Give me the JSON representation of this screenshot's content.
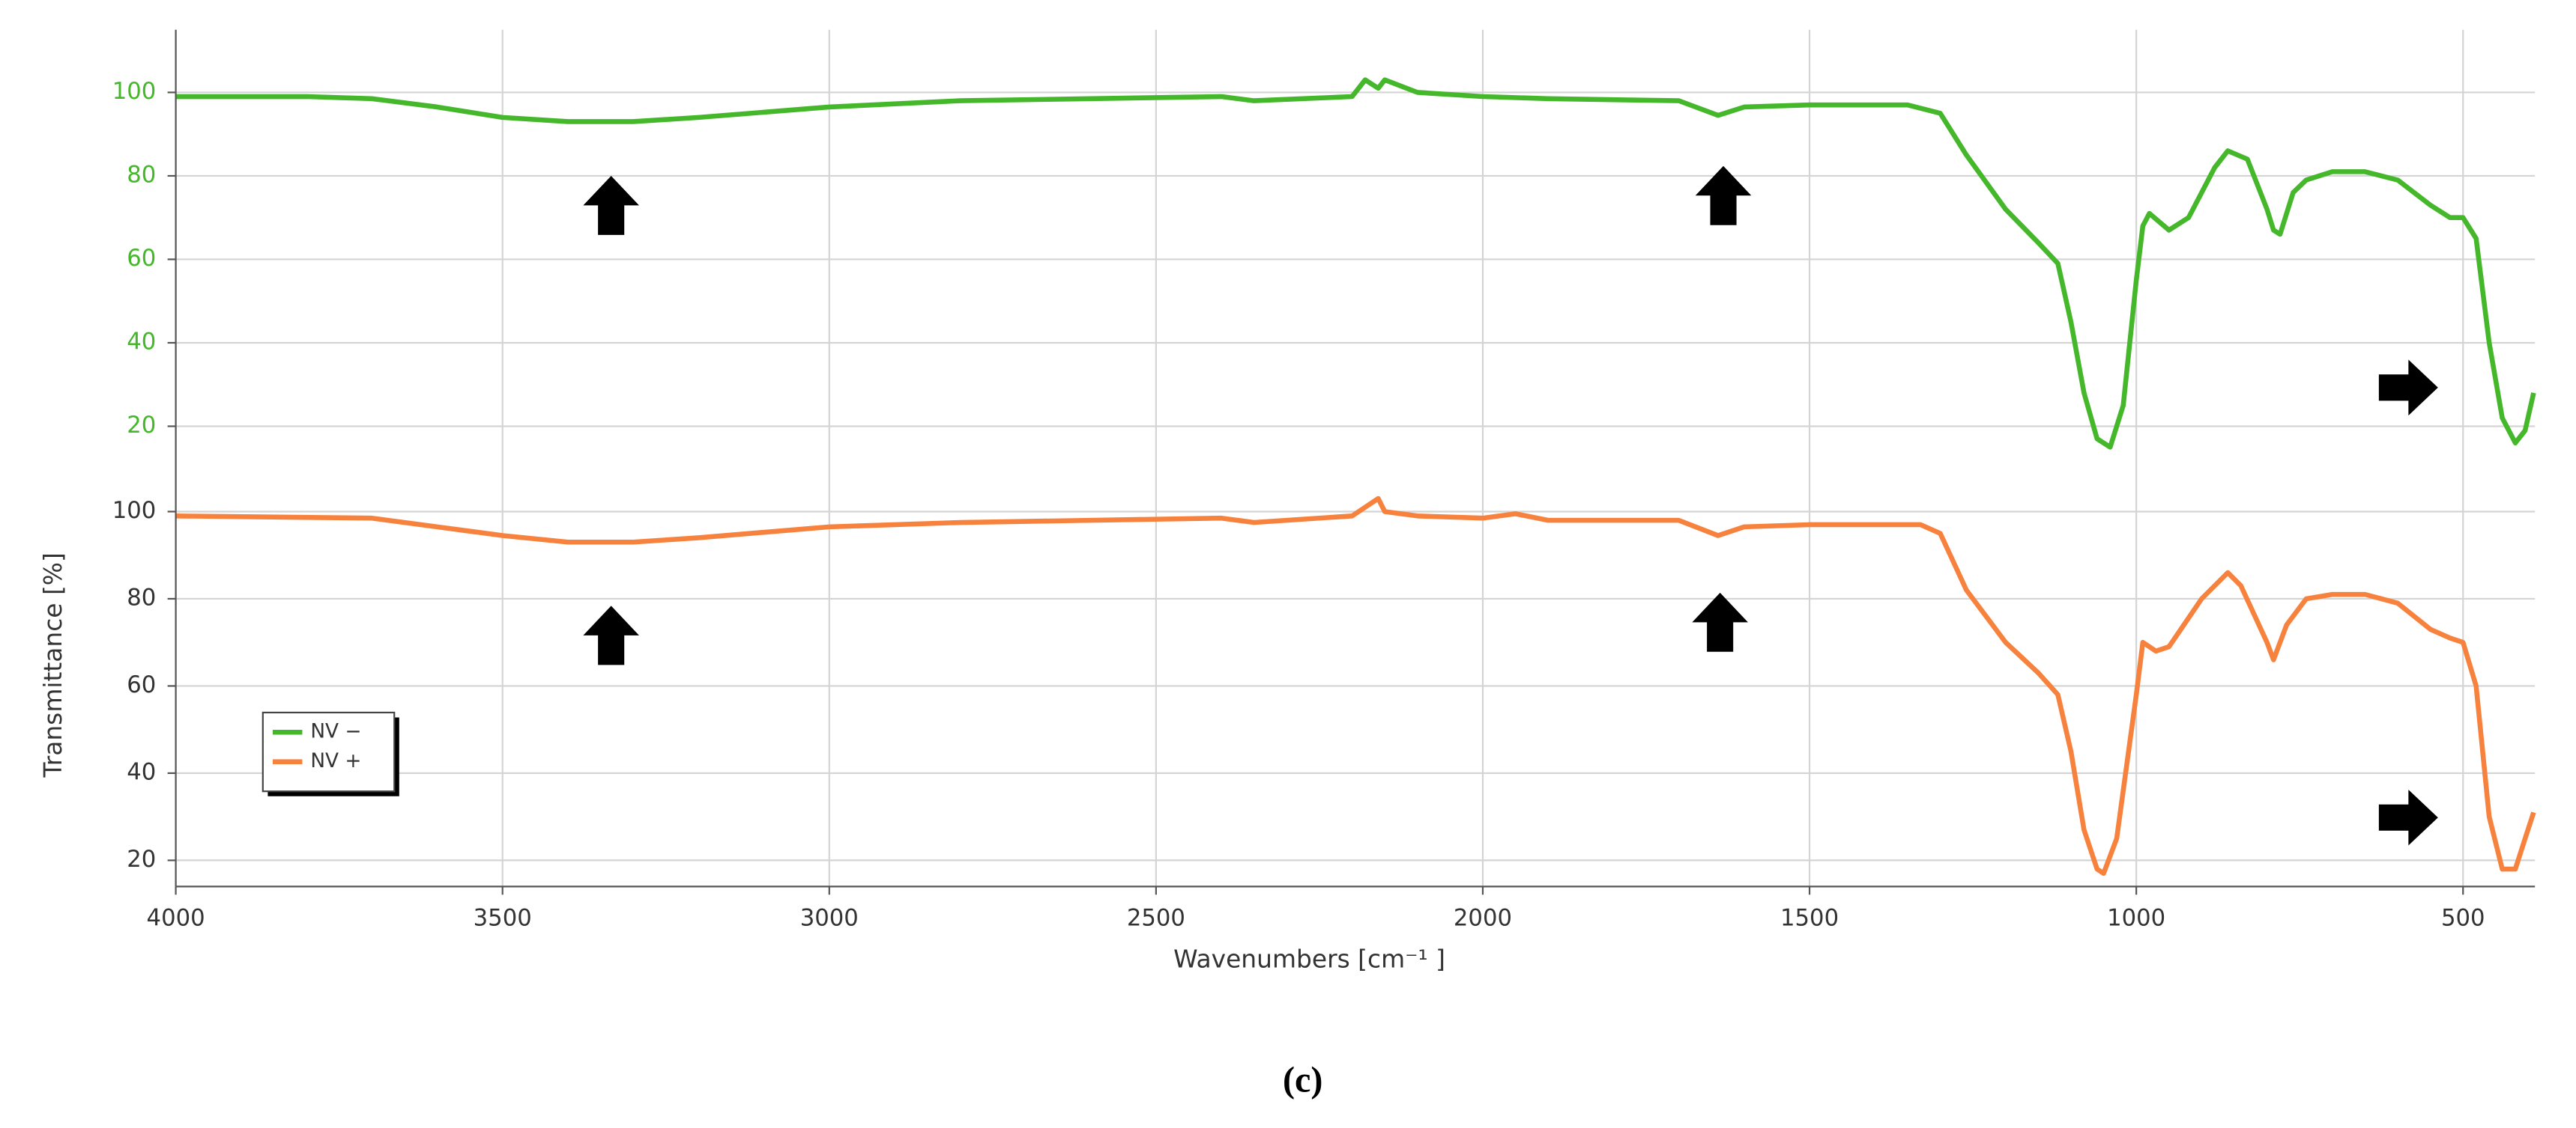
{
  "caption": "(c)",
  "chart_data": [
    {
      "type": "line",
      "x": [
        4000,
        3800,
        3700,
        3600,
        3500,
        3400,
        3300,
        3200,
        3000,
        2800,
        2600,
        2400,
        2350,
        2200,
        2180,
        2160,
        2150,
        2100,
        2000,
        1900,
        1700,
        1640,
        1600,
        1500,
        1350,
        1300,
        1260,
        1200,
        1150,
        1120,
        1100,
        1080,
        1060,
        1040,
        1020,
        1000,
        990,
        980,
        950,
        920,
        880,
        860,
        830,
        800,
        790,
        780,
        760,
        740,
        700,
        650,
        600,
        550,
        520,
        500,
        480,
        460,
        440,
        420,
        405,
        392
      ],
      "series": [
        {
          "name": "NV −",
          "color": "#44b82a",
          "values": [
            99,
            99,
            98.5,
            96.5,
            94,
            93,
            93,
            94,
            96.5,
            98,
            98.5,
            99,
            98,
            99,
            103,
            101,
            103,
            100,
            99,
            98.5,
            98,
            94.5,
            96.5,
            97,
            97,
            95,
            85,
            72,
            64,
            59,
            45,
            28,
            17,
            15,
            25,
            55,
            68,
            71,
            67,
            70,
            82,
            86,
            84,
            72,
            67,
            66,
            76,
            79,
            81,
            81,
            79,
            73,
            70,
            70,
            65,
            40,
            22,
            16,
            19,
            28
          ]
        }
      ],
      "xlim": [
        4000,
        390
      ],
      "ylim": [
        10,
        115
      ],
      "yticks": [
        20,
        40,
        60,
        80,
        100
      ],
      "tick_label_color": "#44b82a",
      "grid": true
    },
    {
      "type": "line",
      "x": [
        4000,
        3700,
        3600,
        3500,
        3400,
        3300,
        3200,
        3000,
        2800,
        2600,
        2400,
        2350,
        2200,
        2160,
        2150,
        2100,
        2000,
        1950,
        1900,
        1700,
        1640,
        1600,
        1500,
        1330,
        1300,
        1260,
        1200,
        1150,
        1120,
        1100,
        1080,
        1060,
        1050,
        1030,
        1000,
        990,
        970,
        950,
        900,
        860,
        840,
        800,
        790,
        770,
        740,
        700,
        650,
        600,
        550,
        520,
        500,
        480,
        460,
        440,
        420,
        405,
        392
      ],
      "series": [
        {
          "name": "NV +",
          "color": "#f7823e",
          "values": [
            99,
            98.5,
            96.5,
            94.5,
            93,
            93,
            94,
            96.5,
            97.5,
            98,
            98.5,
            97.5,
            99,
            103,
            100,
            99,
            98.5,
            99.5,
            98,
            98,
            94.5,
            96.5,
            97,
            97,
            95,
            82,
            70,
            63,
            58,
            45,
            27,
            18,
            17,
            25,
            58,
            70,
            68,
            69,
            80,
            86,
            83,
            70,
            66,
            74,
            80,
            81,
            81,
            79,
            73,
            71,
            70,
            60,
            30,
            18,
            18,
            25,
            31
          ]
        }
      ],
      "xlim": [
        4000,
        390
      ],
      "xticks": [
        4000,
        3500,
        3000,
        2500,
        2000,
        1500,
        1000,
        500
      ],
      "ylim": [
        14,
        110
      ],
      "yticks": [
        20,
        40,
        60,
        80,
        100
      ],
      "tick_label_color": "#333333",
      "xlabel": "Wavenumbers [cm⁻¹ ]",
      "ylabel": "Transmittance [%]",
      "legend": "lower left",
      "grid": true
    }
  ]
}
